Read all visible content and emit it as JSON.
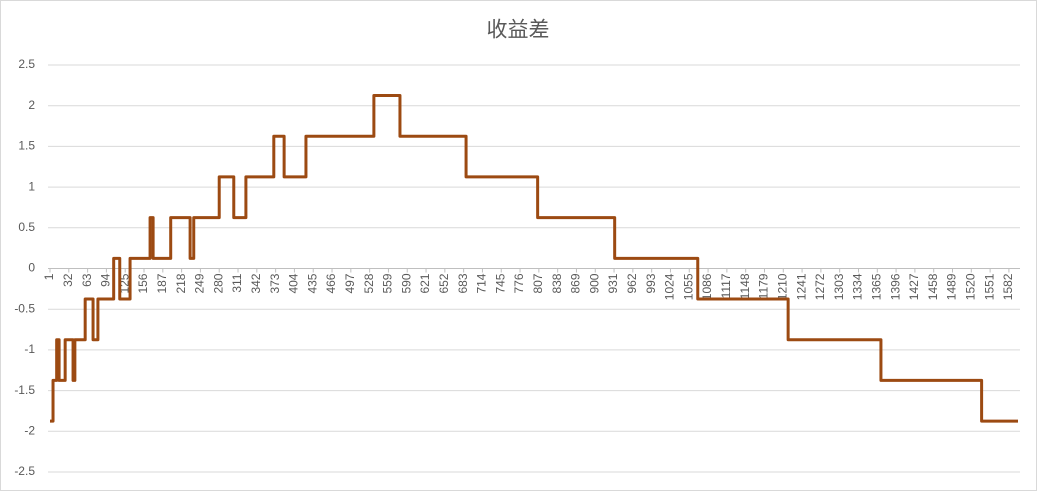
{
  "chart_data": {
    "type": "line",
    "title": "收益差",
    "x": [
      1,
      6,
      6,
      12,
      12,
      16,
      16,
      26,
      26,
      39,
      39,
      42,
      42,
      59,
      59,
      72,
      72,
      80,
      80,
      106,
      106,
      116,
      116,
      133,
      133,
      166,
      166,
      171,
      171,
      200,
      200,
      232,
      232,
      238,
      238,
      280,
      280,
      304,
      304,
      324,
      324,
      370,
      370,
      387,
      387,
      423,
      423,
      535,
      535,
      578,
      578,
      687,
      687,
      805,
      805,
      932,
      932,
      1069,
      1069,
      1218,
      1218,
      1371,
      1371,
      1537,
      1537,
      1597
    ],
    "values": [
      -1.875,
      -1.875,
      -1.375,
      -1.375,
      -0.875,
      -0.875,
      -1.375,
      -1.375,
      -0.875,
      -0.875,
      -1.375,
      -1.375,
      -0.875,
      -0.875,
      -0.375,
      -0.375,
      -0.875,
      -0.875,
      -0.375,
      -0.375,
      0.125,
      0.125,
      -0.375,
      -0.375,
      0.125,
      0.125,
      0.625,
      0.625,
      0.125,
      0.125,
      0.625,
      0.625,
      0.125,
      0.125,
      0.625,
      0.625,
      1.125,
      1.125,
      0.625,
      0.625,
      1.125,
      1.125,
      1.625,
      1.625,
      1.125,
      1.125,
      1.625,
      1.625,
      2.125,
      2.125,
      1.625,
      1.625,
      1.125,
      1.125,
      0.625,
      0.625,
      0.125,
      0.125,
      -0.375,
      -0.375,
      -0.875,
      -0.875,
      -1.375,
      -1.375,
      -1.875,
      -1.875
    ],
    "color": "#9c4a12",
    "xlim": [
      1,
      1597
    ],
    "xticks": [
      1,
      32,
      63,
      94,
      125,
      156,
      187,
      218,
      249,
      280,
      311,
      342,
      373,
      404,
      435,
      466,
      497,
      528,
      559,
      590,
      621,
      652,
      683,
      714,
      745,
      776,
      807,
      838,
      869,
      900,
      931,
      962,
      993,
      1024,
      1055,
      1086,
      1117,
      1148,
      1179,
      1210,
      1241,
      1272,
      1303,
      1334,
      1365,
      1396,
      1427,
      1458,
      1489,
      1520,
      1551,
      1582
    ],
    "ylim": [
      -2.5,
      2.5
    ],
    "yticks": [
      -2.5,
      -2,
      -1.5,
      -1,
      -0.5,
      0,
      0.5,
      1,
      1.5,
      2,
      2.5
    ],
    "grid": true
  }
}
